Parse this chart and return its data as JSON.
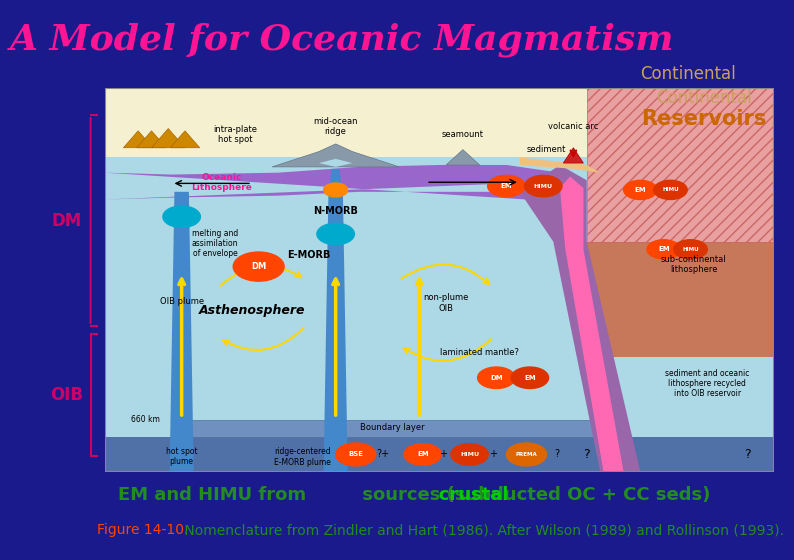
{
  "title": "A Model for Oceanic Magmatism",
  "title_color": "#FF1493",
  "title_bg_color": "#1a1a8c",
  "title_fontsize": 26,
  "continental_text": "Continental",
  "continental_color": "#C8A060",
  "reservoirs_text": "Reservoirs",
  "reservoirs_color": "#CC6600",
  "continental_fontsize": 12,
  "reservoirs_fontsize": 15,
  "dm_label": "DM",
  "oib_label": "OIB",
  "label_color": "#CC0066",
  "label_fontsize": 12,
  "main_text_line1": "EM and HIMU from ",
  "main_text_crustal": "crustal",
  "main_text_line1_end": " sources (subducted OC + CC seds)",
  "main_text_color": "#228B22",
  "crustal_color": "#00CC00",
  "main_text_fontsize": 13,
  "figure_label": "Figure 14-10.",
  "figure_label_color": "#FF4500",
  "figure_text": " Nomenclature from Zindler and Hart (1986). After Wilson (1989) and Rollinson (1993).",
  "figure_text_color": "#228B22",
  "figure_fontsize": 10,
  "outer_bg": "#1a1a8c",
  "diagram_border_color": "#999999",
  "sky_color": "#F5F0D0",
  "water_color": "#ADD8E6",
  "asth_color": "#B0D8E8",
  "lith_color": "#9966CC",
  "continent_fill": "#E8A0A0",
  "continent_hatch": "#CC7777",
  "subcont_fill": "#C8785A",
  "slab_color": "#C8A050",
  "pink_stripe": "#FF69B4",
  "boundary_color": "#6080C0",
  "bottom_bar_color": "#4060A0",
  "yellow_arrow": "#FFD700",
  "dm_circle_color": "#FF4500",
  "cm_circle_color": "#00AACC",
  "bse_color": "#FF4500",
  "em_color": "#FF4500",
  "himu_color": "#FF4500",
  "prema_color": "#FF4500"
}
